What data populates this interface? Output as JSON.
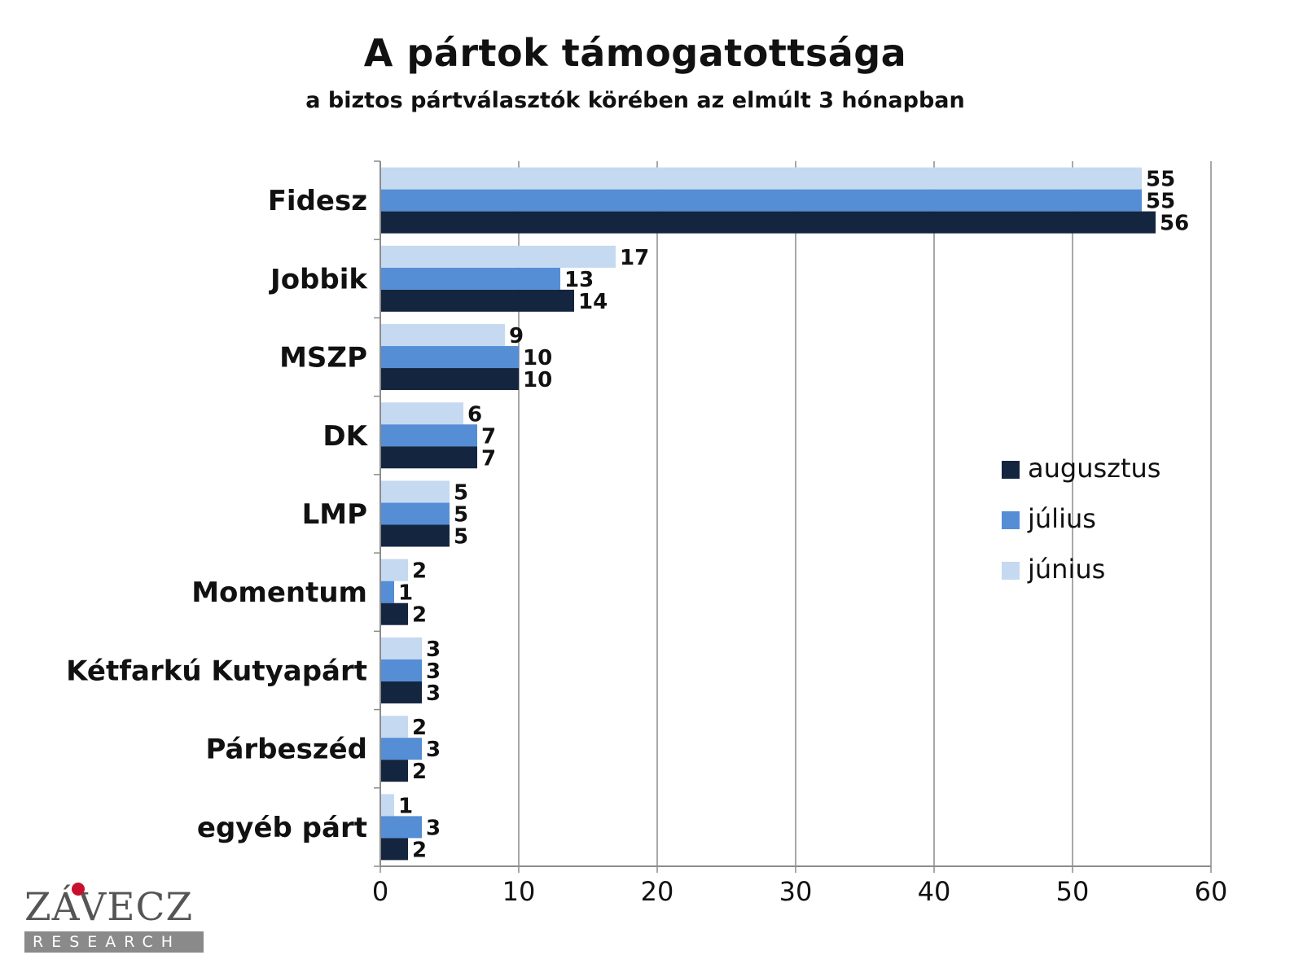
{
  "chart_data": {
    "type": "bar",
    "orientation": "horizontal",
    "title": "A pártok támogatottsága",
    "subtitle": "a biztos pártválasztók körében az elmúlt 3 hónapban",
    "categories": [
      "Fidesz",
      "Jobbik",
      "MSZP",
      "DK",
      "LMP",
      "Momentum",
      "Kétfarkú Kutyapárt",
      "Párbeszéd",
      "egyéb párt"
    ],
    "series": [
      {
        "name": "június",
        "color": "#c5d9f1",
        "values": [
          55,
          17,
          9,
          6,
          5,
          2,
          3,
          2,
          1
        ]
      },
      {
        "name": "július",
        "color": "#558ed5",
        "values": [
          55,
          13,
          10,
          7,
          5,
          1,
          3,
          3,
          3
        ]
      },
      {
        "name": "augusztus",
        "color": "#14253f",
        "values": [
          56,
          14,
          10,
          7,
          5,
          2,
          3,
          2,
          2
        ]
      }
    ],
    "legend_order": [
      "augusztus",
      "július",
      "június"
    ],
    "xlim": [
      0,
      60
    ],
    "xticks": [
      0,
      10,
      20,
      30,
      40,
      50,
      60
    ],
    "grid": true,
    "legend_position": "right"
  },
  "logo": {
    "name": "ZÁVECZ",
    "sub": "RESEARCH"
  }
}
